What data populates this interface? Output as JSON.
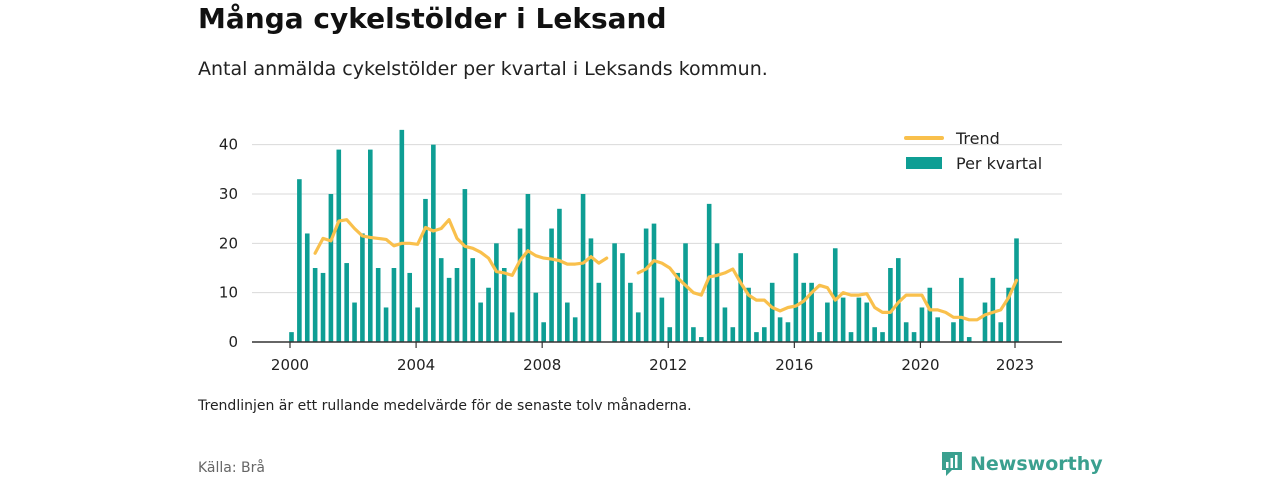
{
  "header": {
    "title": "Många cykelstölder i Leksand",
    "subtitle": "Antal anmälda cykelstölder per kvartal i Leksands kommun."
  },
  "footer": {
    "note": "Trendlinjen är ett rullande medelvärde för de senaste tolv månaderna.",
    "source": "Källa: Brå",
    "logo_text": "Newsworthy"
  },
  "colors": {
    "bar": "#0e9e94",
    "trend": "#f9c04c",
    "grid": "#d9d9d9",
    "axis": "#333333",
    "logo": "#3aa08f"
  },
  "chart_data": {
    "type": "bar",
    "x_axis": {
      "type": "year",
      "range": [
        1998.5,
        2024.0
      ],
      "ticks": [
        2000,
        2004,
        2008,
        2012,
        2016,
        2020,
        2023
      ]
    },
    "y_axis": {
      "range": [
        0,
        45
      ],
      "ticks": [
        0,
        10,
        20,
        30,
        40
      ]
    },
    "grid": true,
    "legend_position": "top-right",
    "series": [
      {
        "name": "Per kvartal",
        "kind": "bar",
        "start_year": 2000,
        "values": [
          2,
          33,
          22,
          15,
          14,
          30,
          39,
          16,
          8,
          22,
          39,
          15,
          7,
          15,
          43,
          14,
          7,
          29,
          40,
          17,
          13,
          15,
          31,
          17,
          8,
          11,
          20,
          15,
          6,
          23,
          30,
          10,
          4,
          23,
          27,
          8,
          5,
          30,
          21,
          12,
          null,
          20,
          18,
          12,
          6,
          23,
          24,
          9,
          3,
          14,
          20,
          3,
          1,
          28,
          20,
          7,
          3,
          18,
          11,
          2,
          3,
          12,
          5,
          4,
          18,
          12,
          12,
          2,
          8,
          19,
          9,
          2,
          9,
          8,
          3,
          2,
          15,
          17,
          4,
          2,
          7,
          11,
          5,
          0,
          4,
          13,
          1,
          0,
          8,
          13,
          4,
          11,
          21
        ]
      },
      {
        "name": "Trend",
        "kind": "line",
        "segments": [
          {
            "start_year": 2000.75,
            "values": [
              18,
              21,
              20.5,
              24.5,
              24.8,
              23,
              21.5,
              21.2,
              21,
              20.8,
              19.5,
              20,
              20,
              19.8,
              23.2,
              22.5,
              23,
              24.8,
              21,
              19.4,
              19,
              18.2,
              17,
              14.3,
              14,
              13.5,
              16.5,
              18.5,
              17.5,
              17,
              16.8,
              16.5,
              15.8,
              15.8,
              16,
              17.3,
              16,
              17
            ]
          },
          {
            "start_year": 2011.0,
            "values": [
              14,
              14.8,
              16.5,
              16,
              15,
              13,
              11.5,
              10,
              9.5,
              13.2,
              13.5,
              14,
              14.8,
              12,
              9.5,
              8.5,
              8.5,
              7,
              6.3,
              7,
              7.3,
              8.3,
              10,
              11.5,
              11,
              8.5,
              10,
              9.5,
              9.5,
              9.8,
              7,
              6,
              6,
              8,
              9.5,
              9.5,
              9.5,
              6.5,
              6.5,
              6,
              5,
              5,
              4.5,
              4.5,
              5.5,
              6,
              6.5,
              9,
              12.5
            ]
          }
        ]
      }
    ]
  }
}
